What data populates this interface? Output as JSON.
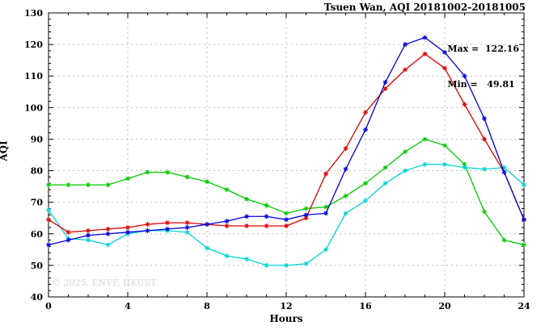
{
  "title": "Tsuen Wan, AQI 20181002-20181005",
  "stats": {
    "max_line": "Max =  122.16",
    "min_line": "Min =   49.81"
  },
  "watermark": "© 2025, ENVF, HKUST",
  "chart_data": {
    "type": "line",
    "title": "Tsuen Wan, AQI 20181002-20181005",
    "xlabel": "Hours",
    "ylabel": "AQI",
    "xlim": [
      0,
      24
    ],
    "ylim": [
      40,
      130
    ],
    "xticks": [
      0,
      4,
      8,
      12,
      16,
      20,
      24
    ],
    "yticks": [
      40,
      50,
      60,
      70,
      80,
      90,
      100,
      110,
      120,
      130
    ],
    "grid": true,
    "legend_position": "none",
    "max_value": 122.16,
    "min_value": 49.81,
    "marker": "asterisk",
    "x": [
      0,
      1,
      2,
      3,
      4,
      5,
      6,
      7,
      8,
      9,
      10,
      11,
      12,
      13,
      14,
      15,
      16,
      17,
      18,
      19,
      20,
      21,
      22,
      23,
      24
    ],
    "series": [
      {
        "name": "green",
        "color": "#00cc00",
        "values": [
          75.5,
          75.5,
          75.5,
          75.5,
          77.5,
          79.5,
          79.5,
          78,
          76.5,
          74,
          71,
          69,
          66.5,
          68,
          68.5,
          72,
          76,
          81,
          86,
          90,
          88,
          82,
          67,
          58,
          56.5
        ]
      },
      {
        "name": "cyan",
        "color": "#00d5d5",
        "values": [
          67.5,
          58.5,
          58,
          56.5,
          60,
          61,
          61,
          60.5,
          55.5,
          53,
          52,
          50,
          50,
          50.5,
          55,
          66.5,
          70.5,
          76,
          80,
          82,
          82,
          81,
          80.5,
          81,
          75.5
        ]
      },
      {
        "name": "red",
        "color": "#dd0000",
        "values": [
          64.5,
          60.5,
          61,
          61.5,
          62,
          63,
          63.5,
          63.5,
          63,
          62.5,
          62.5,
          62.5,
          62.5,
          65,
          79,
          87,
          98.5,
          106,
          112,
          117,
          112.5,
          101,
          90,
          79.5,
          64.5
        ]
      },
      {
        "name": "blue",
        "color": "#0000dd",
        "values": [
          56.5,
          58,
          59.5,
          60,
          60.5,
          61,
          61.5,
          62,
          63,
          64,
          65.5,
          65.5,
          64.5,
          66,
          66.5,
          80.5,
          93,
          108,
          120,
          122.2,
          117.5,
          110,
          96.5,
          79.5,
          64.5
        ]
      }
    ]
  }
}
